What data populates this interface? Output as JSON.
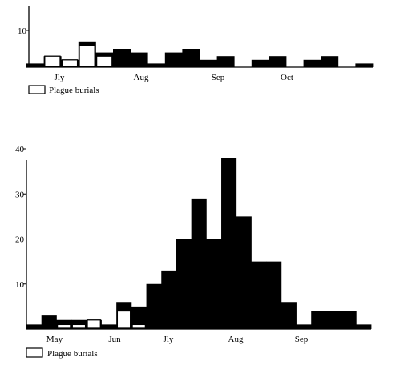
{
  "colors": {
    "burials": "#000000",
    "plague": "#ffffff",
    "axis": "#000000"
  },
  "chart_data": [
    {
      "type": "bar",
      "variant": "overlaid-bar-histogram",
      "title": "",
      "xlabel": "",
      "ylabel": "",
      "ylim": [
        0,
        15
      ],
      "y_ticks": [
        10
      ],
      "y_tick_labels": [
        "10"
      ],
      "x_month_labels": [
        "Jly",
        "Aug",
        "Sep",
        "Oct"
      ],
      "legend": {
        "label": "Plague burials",
        "placement": "bottom-left"
      },
      "n_weeks": 20,
      "series": [
        {
          "name": "",
          "values": [
            1,
            3,
            2,
            7,
            4,
            5,
            4,
            1,
            4,
            5,
            2,
            3,
            0,
            2,
            3,
            0,
            2,
            3,
            0,
            1
          ]
        },
        {
          "name": "Plague burials",
          "values": [
            0,
            3,
            2,
            6,
            3,
            0,
            0,
            0,
            0,
            0,
            0,
            0,
            0,
            0,
            0,
            0,
            0,
            0,
            0,
            0
          ]
        }
      ]
    },
    {
      "type": "bar",
      "variant": "overlaid-bar-histogram",
      "title": "",
      "xlabel": "",
      "ylabel": "",
      "ylim": [
        0,
        40
      ],
      "y_ticks": [
        10,
        20,
        30,
        40
      ],
      "y_tick_labels": [
        "10",
        "20",
        "30",
        "40"
      ],
      "x_month_labels": [
        "May",
        "Jun",
        "Jly",
        "Aug",
        "Sep"
      ],
      "legend": {
        "label": "Plague burials",
        "placement": "bottom-left"
      },
      "n_weeks": 23,
      "series": [
        {
          "name": "",
          "values": [
            1,
            3,
            2,
            2,
            2,
            1,
            6,
            5,
            10,
            13,
            20,
            29,
            20,
            38,
            25,
            15,
            15,
            6,
            1,
            4,
            4,
            4,
            1
          ]
        },
        {
          "name": "Plague burials",
          "values": [
            0,
            0,
            1,
            1,
            2,
            0,
            4,
            1,
            0,
            0,
            0,
            0,
            0,
            0,
            0,
            0,
            0,
            0,
            0,
            0,
            0,
            0,
            0
          ]
        }
      ]
    }
  ]
}
